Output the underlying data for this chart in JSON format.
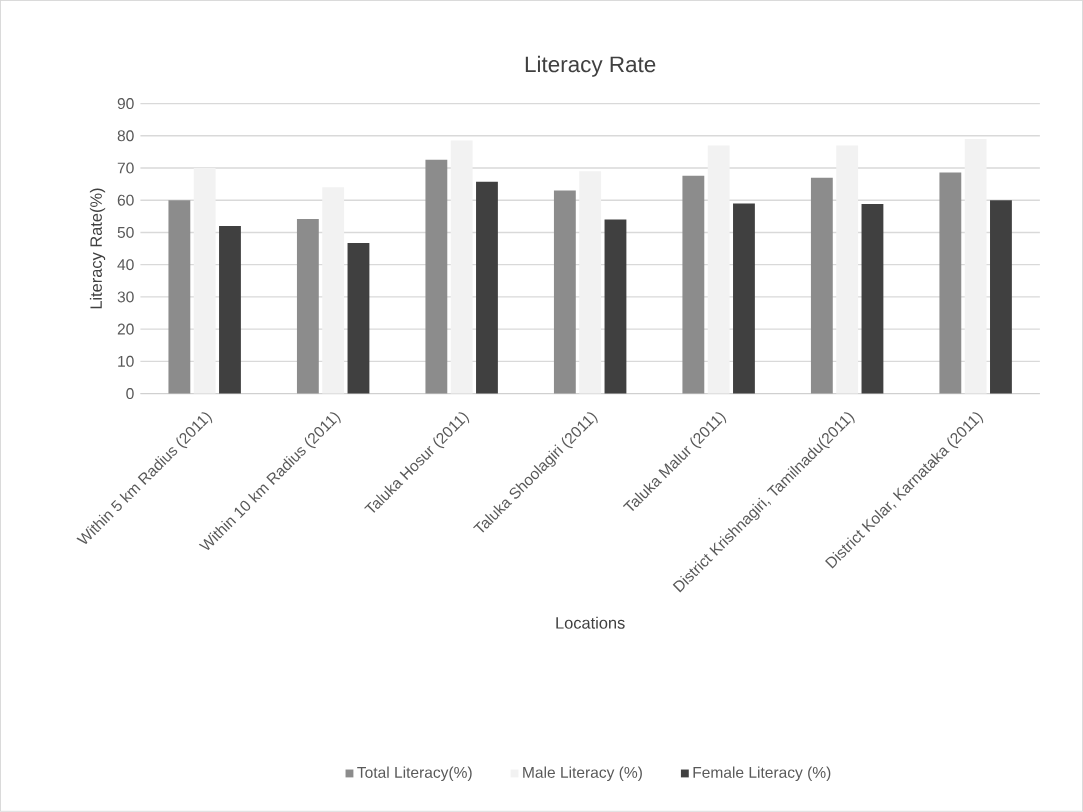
{
  "chart_data": {
    "type": "bar",
    "title": "Literacy Rate",
    "xlabel": "Locations",
    "ylabel": "Literacy Rate(%)",
    "categories": [
      "Within 5 km Radius (2011)",
      "Within 10 km Radius (2011)",
      "Taluka Hosur (2011)",
      "Taluka Shoolagiri (2011)",
      "Taluka Malur (2011)",
      "District Krishnagiri, Tamilnadu(2011)",
      "District Kolar, Karnataka (2011)"
    ],
    "series": [
      {
        "name": "Total Literacy(%)",
        "color": "#8c8c8c",
        "values": [
          60,
          54.2,
          72.6,
          63,
          67.6,
          67,
          68.6
        ]
      },
      {
        "name": "Male Literacy (%)",
        "color": "#f2f2f2",
        "values": [
          70,
          64,
          78.5,
          69,
          77,
          77,
          79
        ]
      },
      {
        "name": "Female Literacy (%)",
        "color": "#404040",
        "values": [
          52,
          46.7,
          65.7,
          54,
          59,
          58.8,
          60
        ]
      }
    ],
    "ylim": [
      0,
      90
    ],
    "yticks": [
      0,
      10,
      20,
      30,
      40,
      50,
      60,
      70,
      80,
      90
    ],
    "grid": "y",
    "legend": "bottom"
  }
}
